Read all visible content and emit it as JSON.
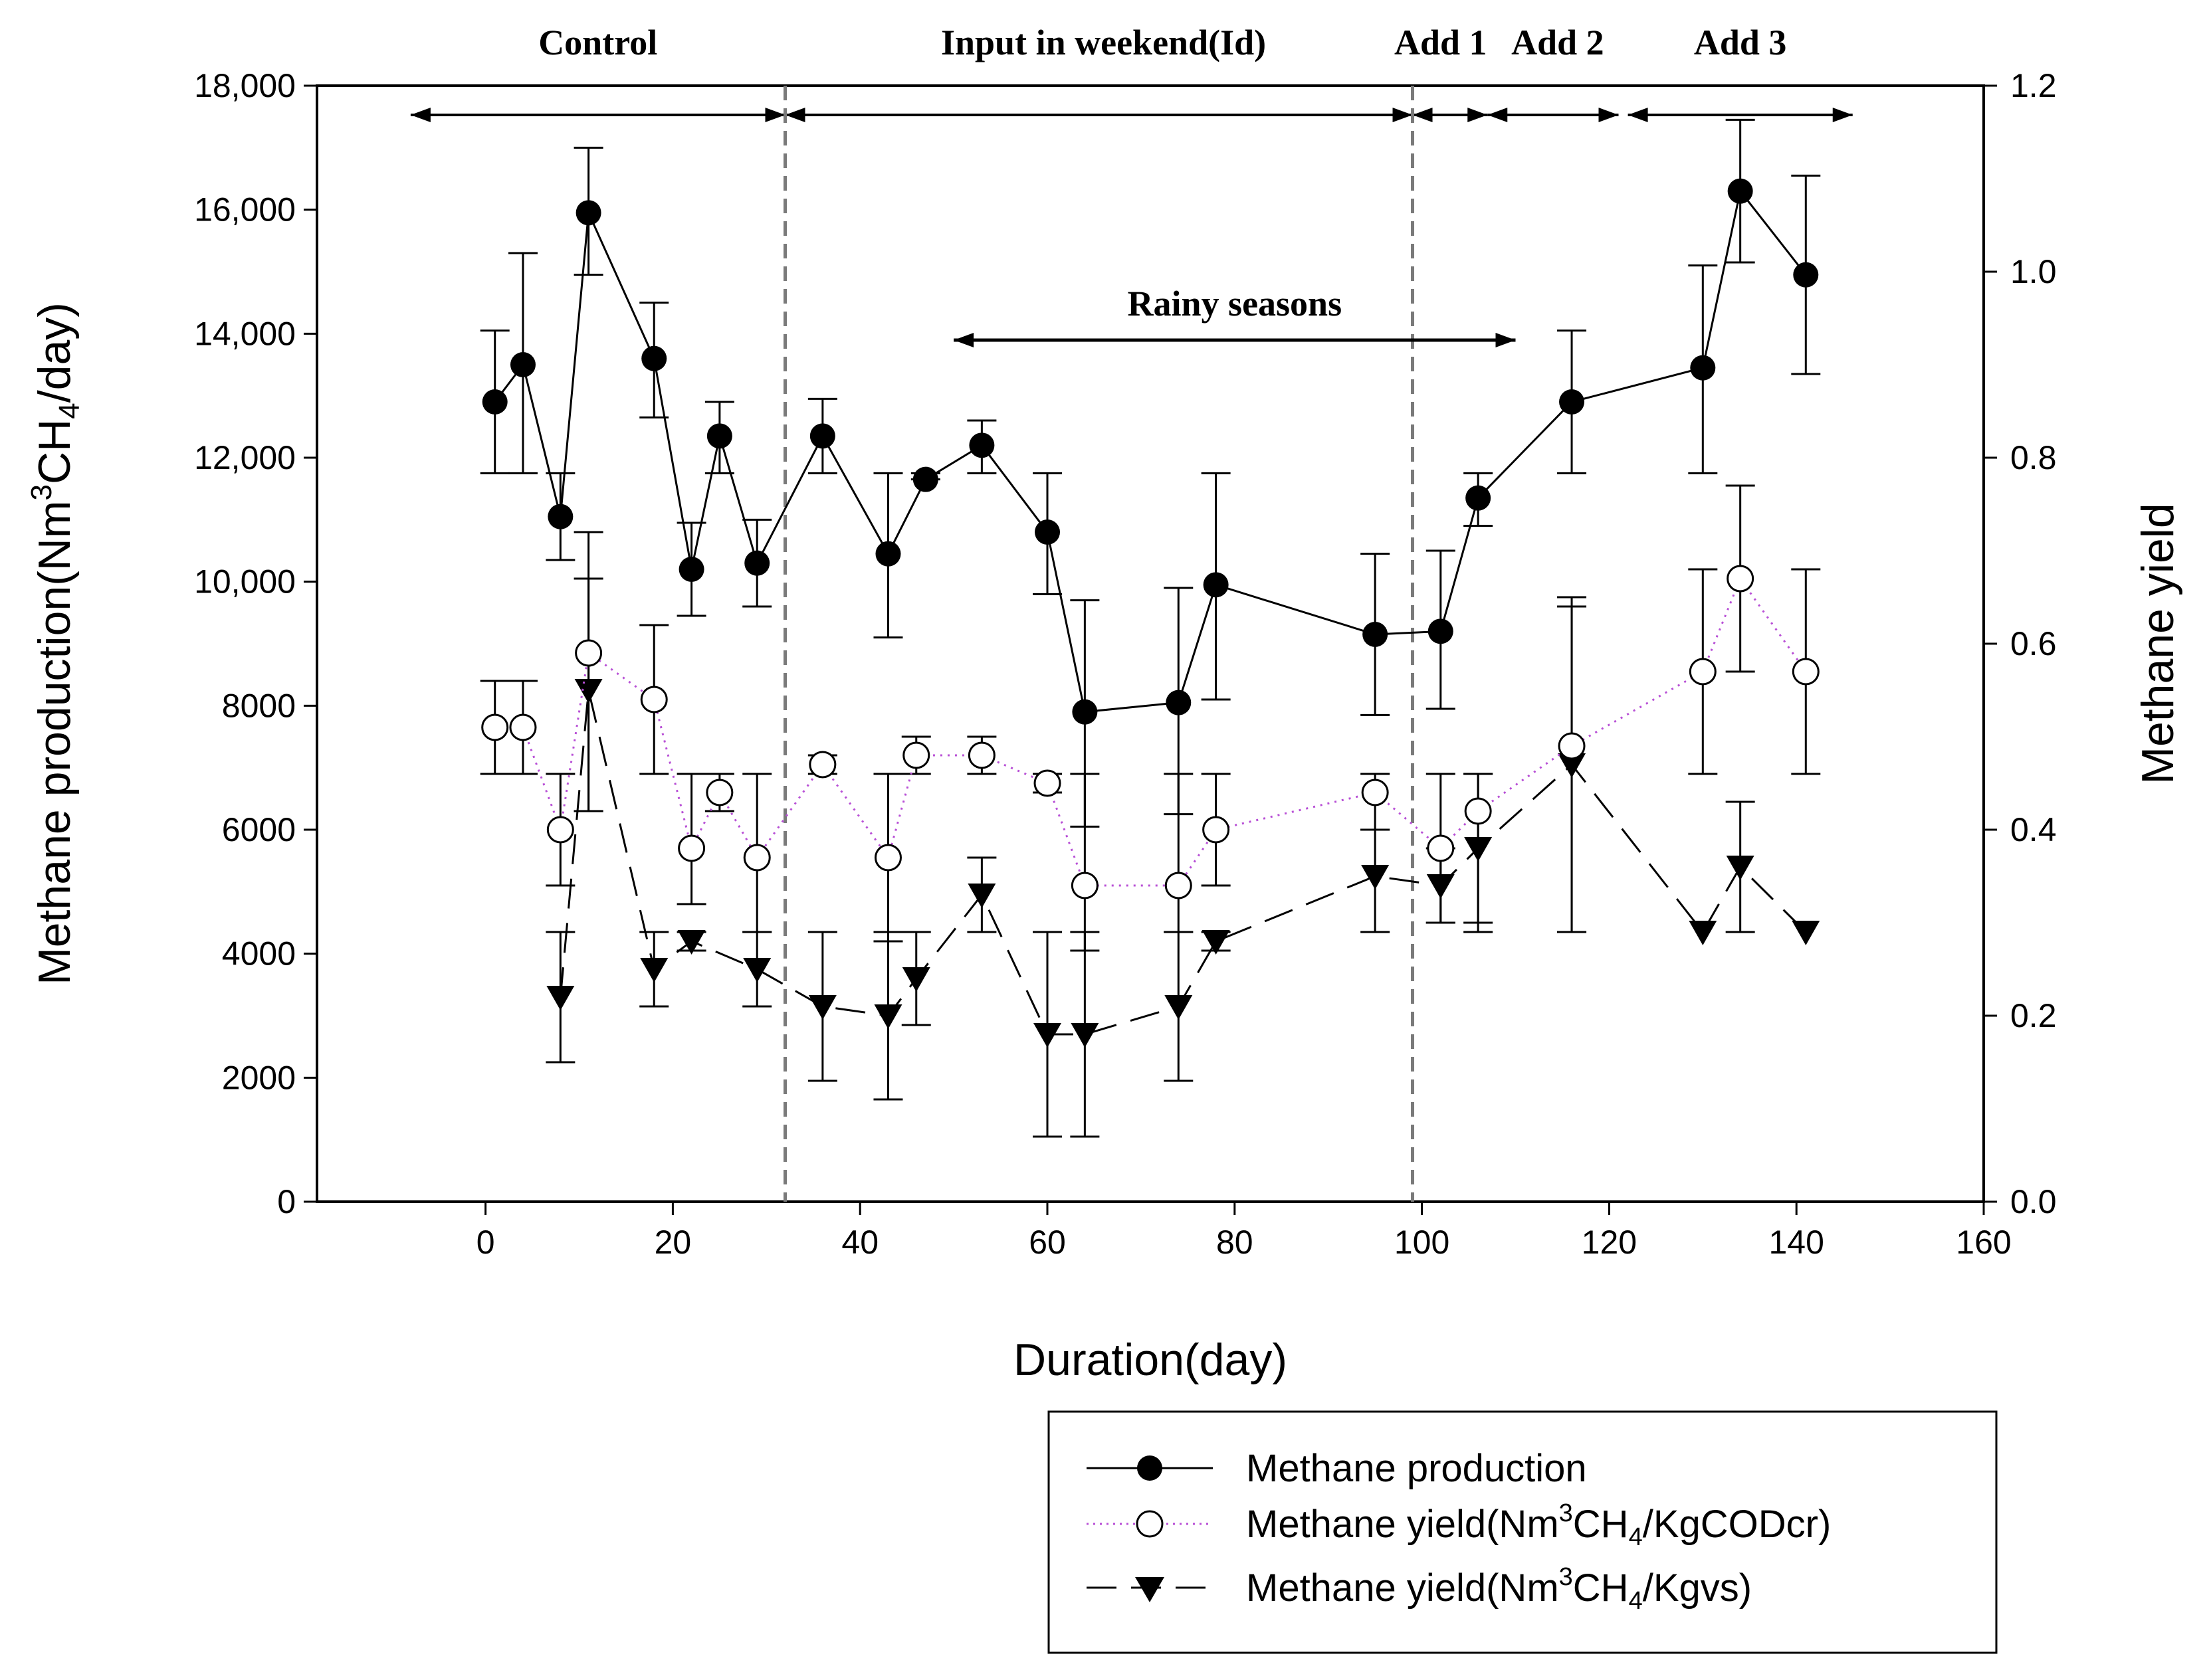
{
  "chart_data": {
    "type": "line",
    "x_axis": {
      "label": "Duration(day)",
      "range": [
        -18,
        160
      ],
      "ticks": [
        0,
        20,
        40,
        60,
        80,
        100,
        120,
        140,
        160
      ]
    },
    "y_axis_left": {
      "label_main": "Methane production(Nm",
      "label_sup": "3",
      "label_mid": "CH",
      "label_sub": "4",
      "label_end": "/day)",
      "range": [
        0,
        18000
      ],
      "ticks": [
        0,
        2000,
        4000,
        6000,
        8000,
        10000,
        12000,
        14000,
        16000,
        18000
      ],
      "tick_labels": [
        "0",
        "2000",
        "4000",
        "6000",
        "8000",
        "10,000",
        "12,000",
        "14,000",
        "16,000",
        "18,000"
      ]
    },
    "y_axis_right": {
      "label": "Methane yield",
      "range": [
        0,
        1.2
      ],
      "ticks": [
        0,
        0.2,
        0.4,
        0.6,
        0.8,
        1.0,
        1.2
      ],
      "tick_labels": [
        "0.0",
        "0.2",
        "0.4",
        "0.6",
        "0.8",
        "1.0",
        "1.2"
      ]
    },
    "phases": [
      {
        "label": "Control",
        "start": -8,
        "end": 32,
        "label_x": 12
      },
      {
        "label": "Input in weekend(Id)",
        "start": 32,
        "end": 99,
        "label_x": 66
      },
      {
        "label": "Add 1",
        "start": 99,
        "end": 107,
        "label_x": 102
      },
      {
        "label": "Add 2",
        "start": 107,
        "end": 121,
        "label_x": 114.5
      },
      {
        "label": "Add 3",
        "start": 122,
        "end": 146,
        "label_x": 134
      }
    ],
    "phase_dividers": [
      32,
      99
    ],
    "annotation": {
      "label": "Rainy seasons",
      "start": 50,
      "end": 110
    },
    "series": [
      {
        "name": "Methane production",
        "axis": "left",
        "marker": "filled-circle",
        "line": "solid",
        "color": "#000000",
        "x": [
          1,
          4,
          8,
          11,
          18,
          22,
          25,
          29,
          36,
          43,
          47,
          53,
          60,
          64,
          74,
          78,
          95,
          102,
          106,
          116,
          130,
          134,
          141
        ],
        "y": [
          12900,
          13500,
          11050,
          15950,
          13600,
          10200,
          12350,
          10300,
          12350,
          10450,
          11650,
          12200,
          10800,
          7900,
          8050,
          9950,
          9150,
          9200,
          11350,
          12900,
          13450,
          16300,
          14950
        ],
        "err_low": [
          11750,
          11750,
          10350,
          14950,
          12650,
          9450,
          11750,
          9600,
          11750,
          9100,
          11650,
          11750,
          9800,
          6050,
          6250,
          8100,
          7850,
          7950,
          10900,
          11750,
          11750,
          15150,
          13350
        ],
        "err_high": [
          14050,
          15300,
          11750,
          17000,
          14500,
          10950,
          12900,
          11000,
          12950,
          11750,
          11750,
          12600,
          11750,
          9700,
          9900,
          11750,
          10450,
          10500,
          11750,
          14050,
          15100,
          17450,
          16550
        ]
      },
      {
        "name": "Methane yield(Nm3CH4/KgCODcr)",
        "axis": "right",
        "marker": "open-circle",
        "line": "dotted",
        "color": "#b84fd6",
        "x": [
          1,
          4,
          8,
          11,
          18,
          22,
          25,
          29,
          36,
          43,
          46,
          53,
          60,
          64,
          74,
          78,
          95,
          102,
          106,
          116,
          130,
          134,
          141
        ],
        "y": [
          0.51,
          0.51,
          0.4,
          0.59,
          0.54,
          0.38,
          0.44,
          0.37,
          0.47,
          0.37,
          0.48,
          0.48,
          0.45,
          0.34,
          0.34,
          0.4,
          0.44,
          0.38,
          0.42,
          0.49,
          0.57,
          0.67,
          0.57
        ],
        "err_low": [
          0.46,
          0.46,
          0.34,
          0.42,
          0.46,
          0.32,
          0.42,
          0.29,
          0.46,
          0.28,
          0.46,
          0.46,
          0.44,
          0.27,
          0.29,
          0.34,
          0.4,
          0.3,
          0.3,
          0.29,
          0.46,
          0.57,
          0.46
        ],
        "err_high": [
          0.56,
          0.56,
          0.46,
          0.72,
          0.62,
          0.46,
          0.46,
          0.46,
          0.48,
          0.46,
          0.5,
          0.5,
          0.46,
          0.46,
          0.46,
          0.46,
          0.46,
          0.46,
          0.46,
          0.64,
          0.68,
          0.77,
          0.68
        ]
      },
      {
        "name": "Methane yield(Nm3CH4/Kgvs)",
        "axis": "right",
        "marker": "filled-triangle-down",
        "line": "dashed",
        "color": "#000000",
        "x": [
          8,
          11,
          18,
          22,
          29,
          36,
          43,
          46,
          53,
          60,
          64,
          74,
          78,
          95,
          102,
          106,
          116,
          130,
          134,
          141
        ],
        "y": [
          0.22,
          0.55,
          0.25,
          0.28,
          0.25,
          0.21,
          0.2,
          0.24,
          0.33,
          0.18,
          0.18,
          0.21,
          0.28,
          0.35,
          0.34,
          0.38,
          0.47,
          0.29,
          0.36,
          0.29
        ],
        "err_low": [
          0.15,
          0.42,
          0.21,
          0.27,
          0.21,
          0.13,
          0.11,
          0.19,
          0.29,
          0.07,
          0.07,
          0.13,
          0.27,
          0.29,
          0.3,
          0.29,
          0.29,
          0.29,
          0.29,
          0.29
        ],
        "err_high": [
          0.29,
          0.67,
          0.29,
          0.29,
          0.29,
          0.29,
          0.29,
          0.29,
          0.37,
          0.29,
          0.29,
          0.29,
          0.29,
          0.4,
          0.38,
          0.46,
          0.65,
          0.29,
          0.43,
          0.29
        ]
      }
    ],
    "legend": {
      "placement": "bottom-right",
      "entries": [
        {
          "text": "Methane production",
          "marker": "filled-circle",
          "line": "solid"
        },
        {
          "text_pre": "Methane yield(Nm",
          "sup": "3",
          "mid": "CH",
          "sub": "4",
          "text_post": "/KgCODcr)",
          "marker": "open-circle",
          "line": "dotted"
        },
        {
          "text_pre": "Methane yield(Nm",
          "sup": "3",
          "mid": "CH",
          "sub": "4",
          "text_post": "/Kgvs)",
          "marker": "filled-triangle-down",
          "line": "dashed"
        }
      ]
    }
  }
}
